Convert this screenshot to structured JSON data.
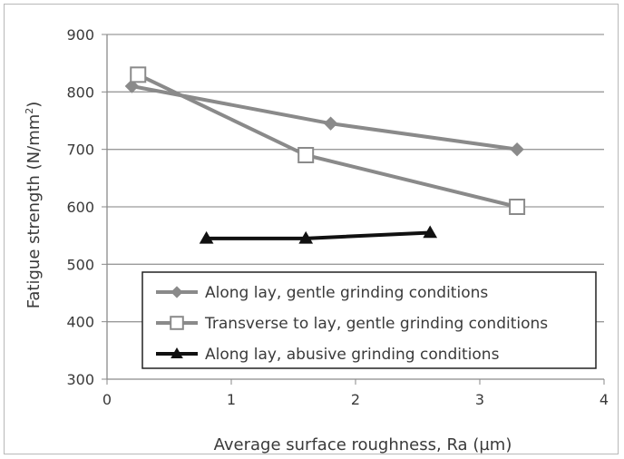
{
  "chart_data": {
    "type": "line",
    "xlabel": "Average surface roughness, Ra (µm)",
    "ylabel_main": "Fatigue strength (N/mm",
    "ylabel_sup": "2",
    "ylabel_close": ")",
    "xlim": [
      0,
      4
    ],
    "ylim": [
      300,
      900
    ],
    "x_ticks": [
      "0",
      "1",
      "2",
      "3",
      "4"
    ],
    "y_ticks": [
      "300",
      "400",
      "500",
      "600",
      "700",
      "800",
      "900"
    ],
    "grid": "horizontal",
    "legend_position": "lower-center",
    "series": [
      {
        "name": "Along lay, gentle grinding conditions",
        "marker": "diamond",
        "color": "#8a8a8a",
        "points": [
          [
            0.2,
            810
          ],
          [
            1.8,
            745
          ],
          [
            3.3,
            700
          ]
        ]
      },
      {
        "name": "Transverse to lay, gentle grinding conditions",
        "marker": "square-open",
        "color": "#8a8a8a",
        "points": [
          [
            0.25,
            830
          ],
          [
            1.6,
            690
          ],
          [
            3.3,
            600
          ]
        ]
      },
      {
        "name": "Along lay, abusive grinding conditions",
        "marker": "triangle",
        "color": "#111111",
        "points": [
          [
            0.8,
            545
          ],
          [
            1.6,
            545
          ],
          [
            2.6,
            555
          ]
        ]
      }
    ]
  }
}
